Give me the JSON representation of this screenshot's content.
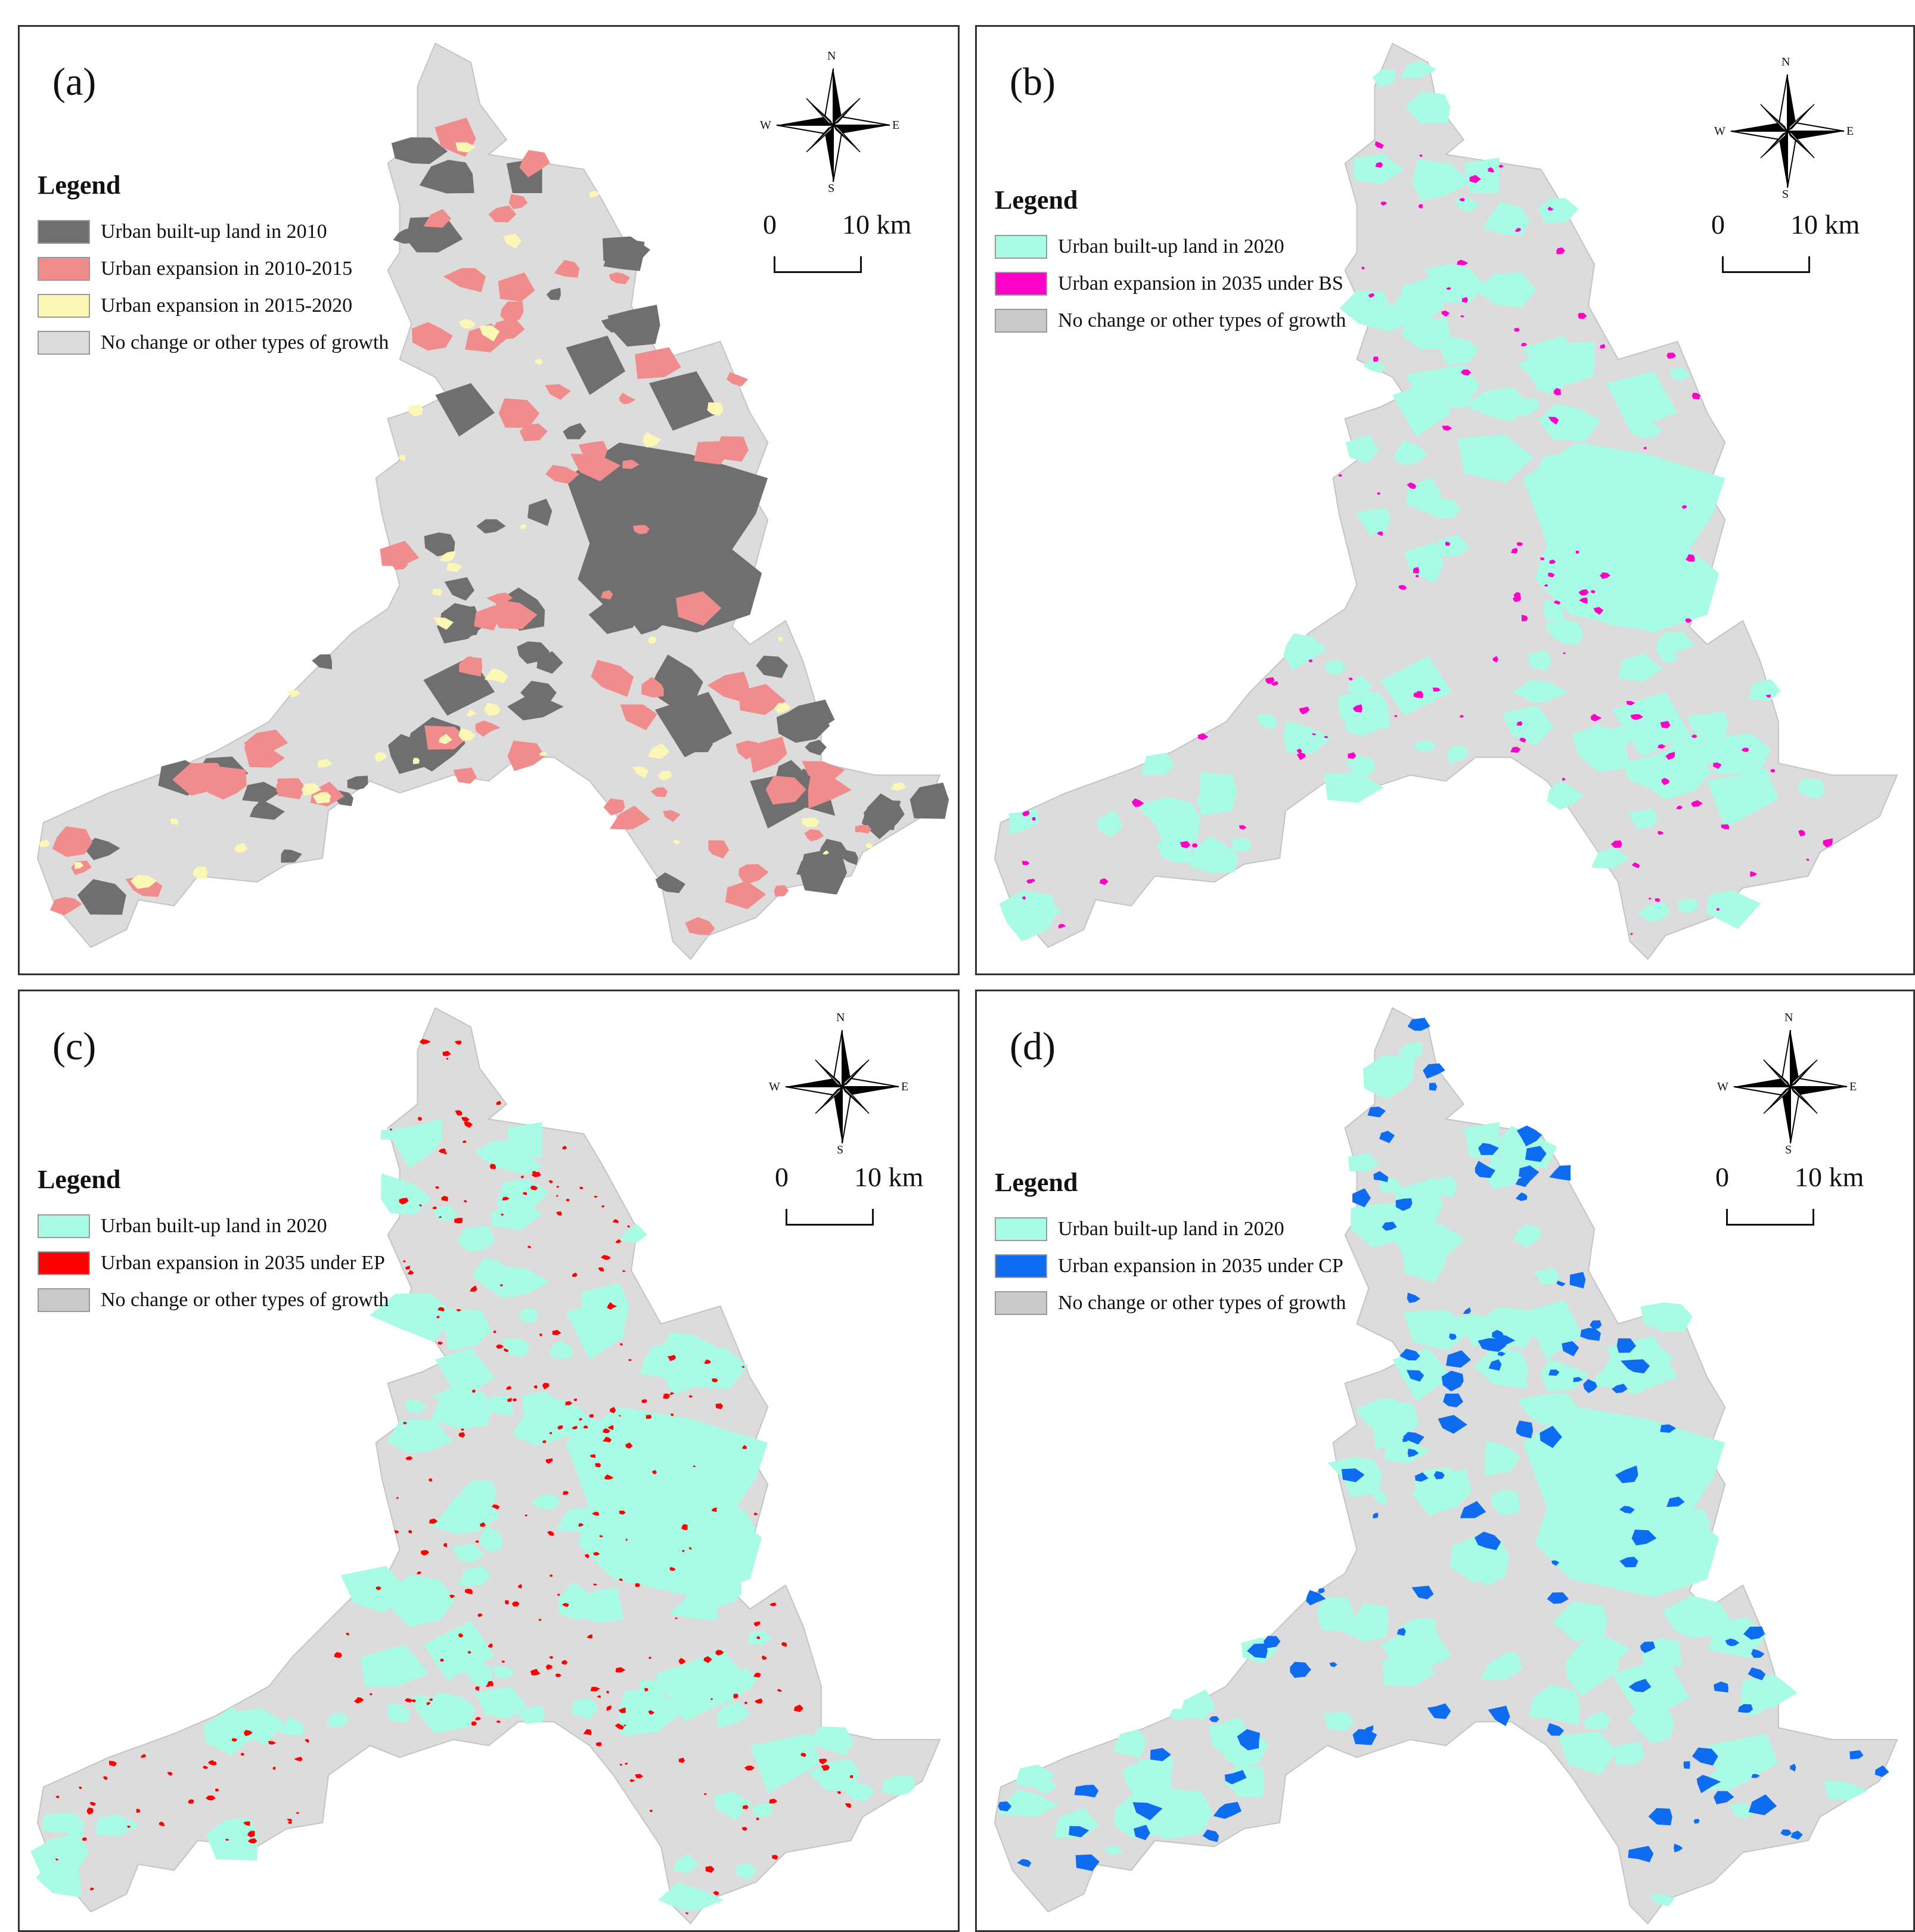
{
  "figure": {
    "colors": {
      "background_land": "#dcdcdc",
      "built_2010": "#6f6f6f",
      "expansion_2010_2015": "#f08c8c",
      "expansion_2015_2020": "#fbf7b4",
      "built_2020": "#a8fbe5",
      "expansion_bs": "#ff00c8",
      "expansion_ep": "#ff0000",
      "expansion_cp": "#0d6cf0"
    },
    "compass": {
      "north": "N",
      "south": "S",
      "east": "E",
      "west": "W"
    },
    "scale": {
      "start": "0",
      "end": "10 km"
    },
    "panels": [
      {
        "label": "(a)",
        "legend_title": "Legend",
        "legend": [
          {
            "text": "Urban built-up land in 2010",
            "color": "#6f6f6f"
          },
          {
            "text": "Urban expansion in 2010-2015",
            "color": "#f08c8c"
          },
          {
            "text": "Urban expansion in 2015-2020",
            "color": "#fbf7b4"
          },
          {
            "text": "No change or other types of growth",
            "color": "#dcdcdc"
          }
        ]
      },
      {
        "label": "(b)",
        "legend_title": "Legend",
        "legend": [
          {
            "text": "Urban built-up land in 2020",
            "color": "#a8fbe5"
          },
          {
            "text": "Urban expansion in 2035 under BS",
            "color": "#ff00c8"
          },
          {
            "text": "No change or other types of growth",
            "color": "#c9c9c9"
          }
        ]
      },
      {
        "label": "(c)",
        "legend_title": "Legend",
        "legend": [
          {
            "text": "Urban built-up land in 2020",
            "color": "#a8fbe5"
          },
          {
            "text": "Urban expansion in 2035 under EP",
            "color": "#ff0000"
          },
          {
            "text": "No change or other types of growth",
            "color": "#c9c9c9"
          }
        ]
      },
      {
        "label": "(d)",
        "legend_title": "Legend",
        "legend": [
          {
            "text": "Urban built-up land in 2020",
            "color": "#a8fbe5"
          },
          {
            "text": "Urban expansion in 2035 under CP",
            "color": "#0d6cf0"
          },
          {
            "text": "No change or other types of growth",
            "color": "#c9c9c9"
          }
        ]
      }
    ]
  }
}
